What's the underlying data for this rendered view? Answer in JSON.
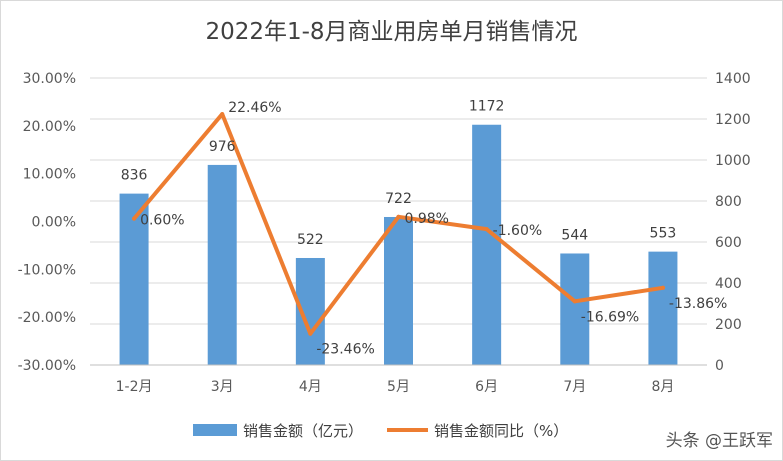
{
  "chart_data": {
    "type": "bar",
    "title": "2022年1-8月商业用房单月销售情况",
    "categories": [
      "1-2月",
      "3月",
      "4月",
      "5月",
      "6月",
      "7月",
      "8月"
    ],
    "series": [
      {
        "name": "销售金额（亿元）",
        "type": "bar",
        "axis": "right",
        "values": [
          836,
          976,
          522,
          722,
          1172,
          544,
          553
        ],
        "labels": [
          "836",
          "976",
          "522",
          "722",
          "1172",
          "544",
          "553"
        ],
        "color": "#5b9bd5"
      },
      {
        "name": "销售金额同比（%）",
        "type": "line",
        "axis": "left",
        "values": [
          0.6,
          22.46,
          -23.46,
          0.98,
          -1.6,
          -16.69,
          -13.86
        ],
        "labels": [
          "0.60%",
          "22.46%",
          "-23.46%",
          "0.98%",
          "-1.60%",
          "-16.69%",
          "-13.86%"
        ],
        "color": "#ed7d31"
      }
    ],
    "y_left": {
      "range": [
        -30,
        30
      ],
      "ticks": [
        "30.00%",
        "20.00%",
        "10.00%",
        "0.00%",
        "-10.00%",
        "-20.00%",
        "-30.00%"
      ]
    },
    "y_right": {
      "range": [
        0,
        1400
      ],
      "ticks": [
        "1400",
        "1200",
        "1000",
        "800",
        "600",
        "400",
        "200",
        "0"
      ]
    },
    "grid": true,
    "legend": "bottom"
  },
  "watermark": "头条 @王跃军"
}
